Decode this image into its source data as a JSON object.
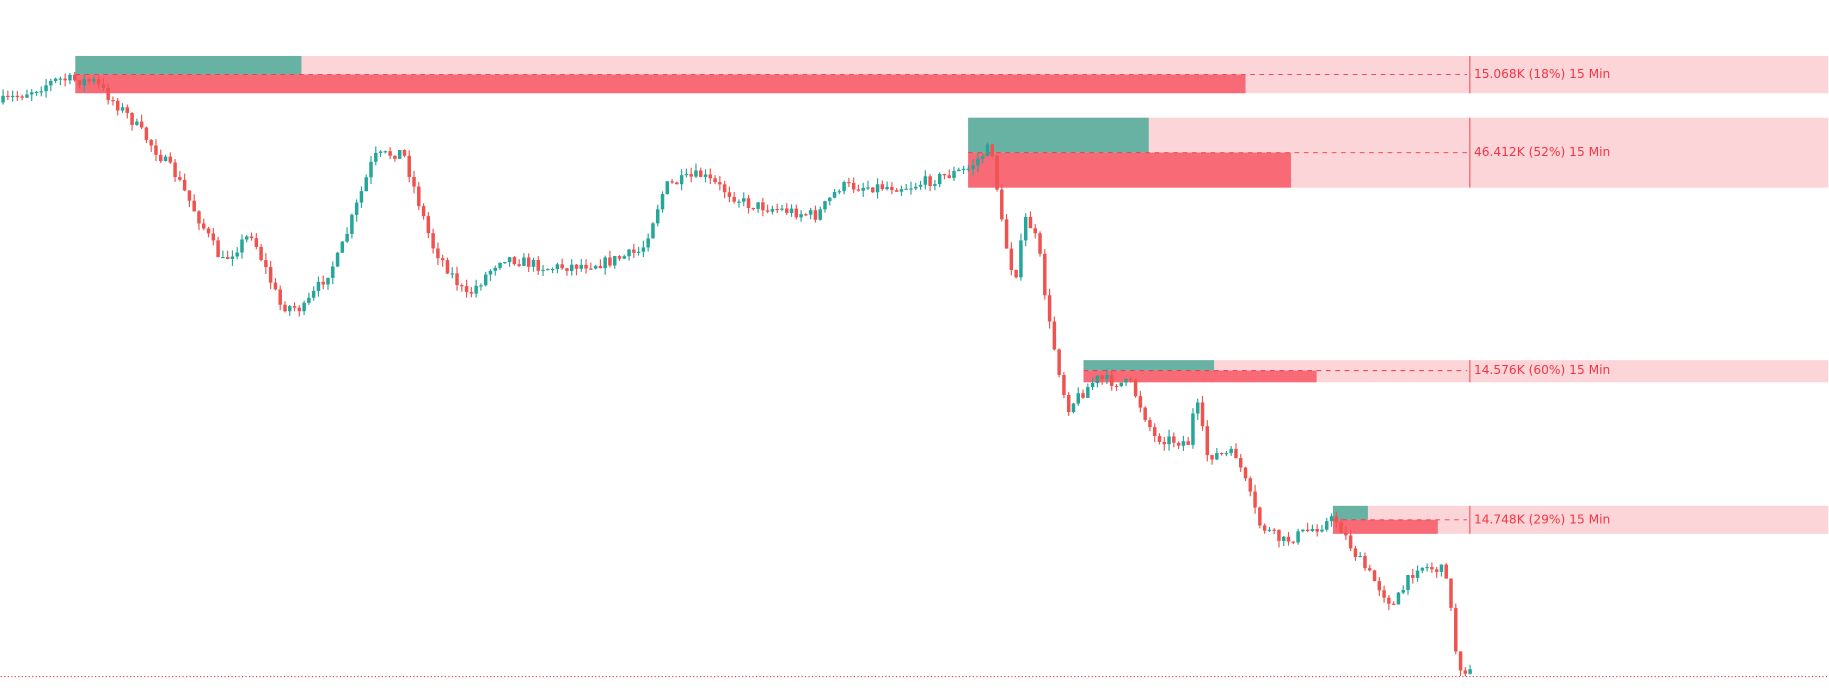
{
  "zones": [
    {
      "label": "15.068K (18%) 15 Min"
    },
    {
      "label": "46.412K (52%) 15 Min"
    },
    {
      "label": "14.576K (60%) 15 Min"
    },
    {
      "label": "14.748K (29%) 15 Min"
    }
  ]
}
